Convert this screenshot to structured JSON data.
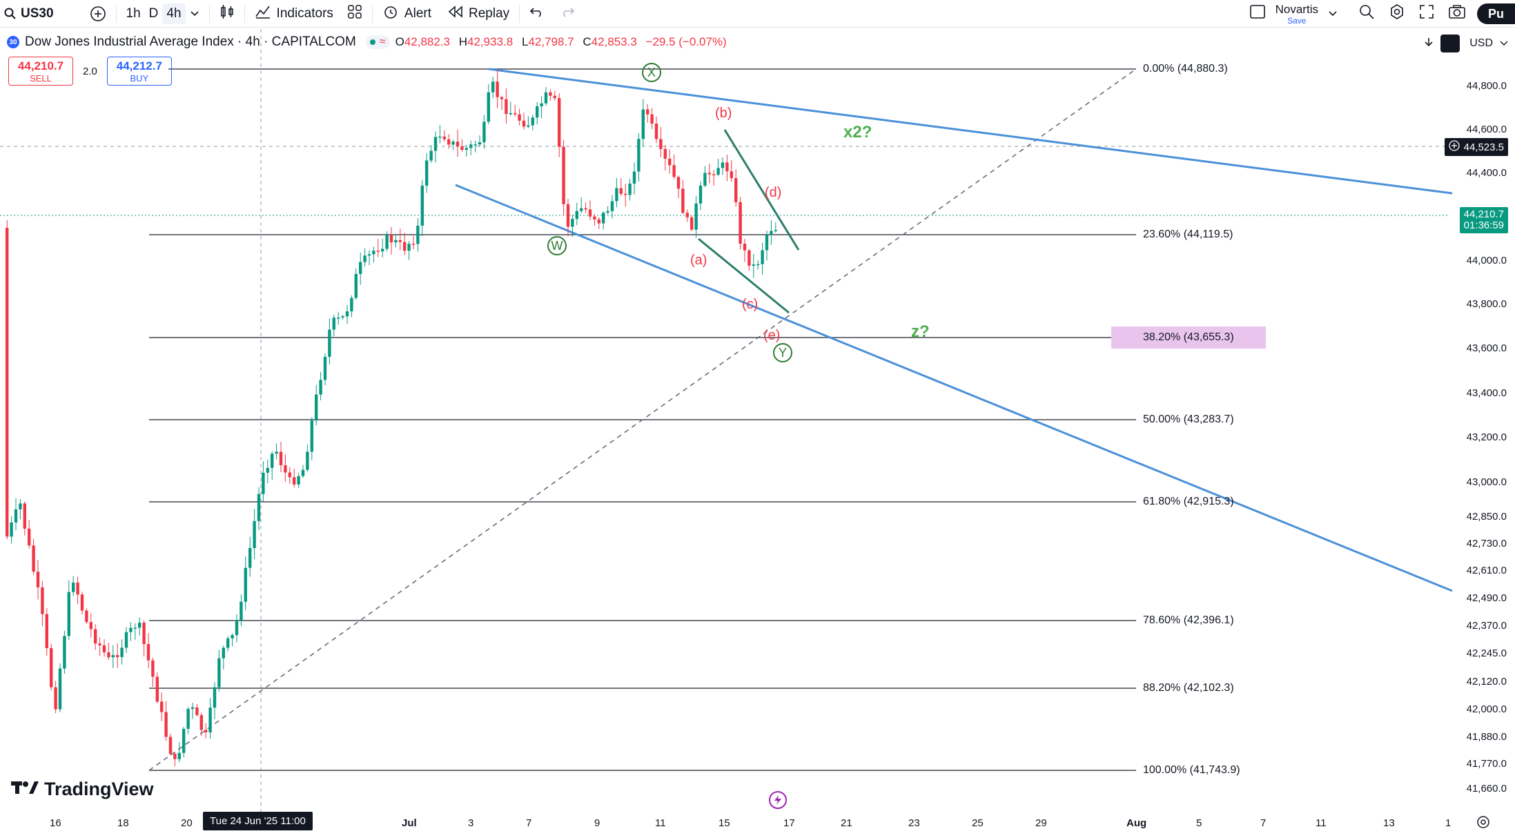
{
  "toolbar": {
    "symbol": "US30",
    "intervals": [
      "1h",
      "D",
      "4h"
    ],
    "active_interval": "4h",
    "indicators_label": "Indicators",
    "alert_label": "Alert",
    "replay_label": "Replay",
    "layout_name": "Novartis",
    "layout_save": "Save",
    "publish_label": "Pu"
  },
  "legend": {
    "badge": "30",
    "title": "Dow Jones Industrial Average Index · 4h · CAPITALCOM",
    "status_symbol": "≈",
    "o_label": "O",
    "o": "42,882.3",
    "h_label": "H",
    "h": "42,933.8",
    "l_label": "L",
    "l": "42,798.7",
    "c_label": "C",
    "c": "42,853.3",
    "change": "−29.5 (−0.07%)"
  },
  "trade": {
    "sell_price": "44,210.7",
    "sell_label": "SELL",
    "spread": "2.0",
    "buy_price": "44,212.7",
    "buy_label": "BUY"
  },
  "currency": "USD",
  "price_scale": [
    "44,800.0",
    "44,600.0",
    "44,400.0",
    "44,000.0",
    "43,800.0",
    "43,600.0",
    "43,400.0",
    "43,200.0",
    "43,000.0",
    "42,850.0",
    "42,730.0",
    "42,610.0",
    "42,490.0",
    "42,370.0",
    "42,245.0",
    "42,120.0",
    "42,000.0",
    "41,880.0",
    "41,770.0",
    "41,660.0"
  ],
  "crosshair_price": "44,523.5",
  "last_price": "44,210.7",
  "last_countdown": "01:36:59",
  "time_scale": [
    "16",
    "18",
    "20",
    "Jul",
    "3",
    "7",
    "9",
    "11",
    "15",
    "17",
    "21",
    "23",
    "25",
    "29",
    "Aug",
    "5",
    "7",
    "11",
    "13",
    "1"
  ],
  "crosshair_date": "Tue 24 Jun '25  11:00",
  "fib_levels": [
    {
      "label": "0.00% (44,880.3)"
    },
    {
      "label": "23.60% (44,119.5)"
    },
    {
      "label": "38.20% (43,655.3)"
    },
    {
      "label": "50.00% (43,283.7)"
    },
    {
      "label": "61.80% (42,915.3)"
    },
    {
      "label": "78.60% (42,396.1)"
    },
    {
      "label": "88.20% (42,102.3)"
    },
    {
      "label": "100.00% (41,743.9)"
    }
  ],
  "waves": {
    "w": "W",
    "x": "X",
    "y": "Y",
    "a": "(a)",
    "b": "(b)",
    "c": "(c)",
    "d": "(d)",
    "e": "(e)",
    "x2": "x2?",
    "z": "z?"
  },
  "branding": "TradingView",
  "colors": {
    "up": "#089981",
    "down": "#f23645",
    "trendline": "#4a90d9",
    "fib_highlight": "#e9c5ee"
  }
}
